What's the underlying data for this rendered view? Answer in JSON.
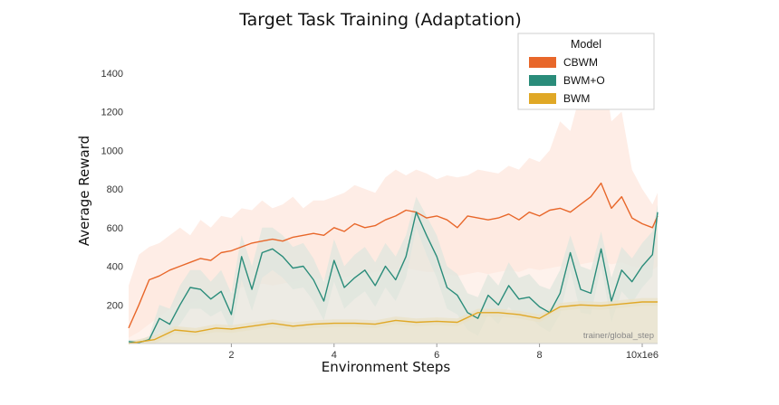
{
  "chart_data": {
    "type": "line",
    "title": "Target Task Training (Adaptation)",
    "xlabel": "Environment Steps",
    "ylabel": "Average Reward",
    "x_tick_labels": [
      "2",
      "4",
      "6",
      "8",
      "10x1e6"
    ],
    "x_ticks": [
      2,
      4,
      6,
      8,
      10
    ],
    "y_ticks": [
      200,
      400,
      600,
      800,
      1000,
      1200,
      1400
    ],
    "xlim": [
      0,
      10.3
    ],
    "ylim": [
      0,
      1600
    ],
    "grid": false,
    "legend": {
      "title": "Model",
      "placement": "top-right"
    },
    "annotation": "trainer/global_step",
    "series": [
      {
        "name": "CBWM",
        "color": "#e8672a",
        "band_color": "#fde7dd",
        "x": [
          0.0,
          0.2,
          0.4,
          0.6,
          0.8,
          1.0,
          1.2,
          1.4,
          1.6,
          1.8,
          2.0,
          2.2,
          2.4,
          2.6,
          2.8,
          3.0,
          3.2,
          3.4,
          3.6,
          3.8,
          4.0,
          4.2,
          4.4,
          4.6,
          4.8,
          5.0,
          5.2,
          5.4,
          5.6,
          5.8,
          6.0,
          6.2,
          6.4,
          6.6,
          6.8,
          7.0,
          7.2,
          7.4,
          7.6,
          7.8,
          8.0,
          8.2,
          8.4,
          8.6,
          8.8,
          9.0,
          9.2,
          9.4,
          9.6,
          9.8,
          10.0,
          10.2,
          10.3
        ],
        "values": [
          80,
          200,
          330,
          350,
          380,
          400,
          420,
          440,
          430,
          470,
          480,
          500,
          520,
          530,
          540,
          530,
          550,
          560,
          570,
          560,
          600,
          580,
          620,
          600,
          610,
          640,
          660,
          690,
          680,
          650,
          660,
          640,
          600,
          660,
          650,
          640,
          650,
          670,
          640,
          680,
          660,
          690,
          700,
          680,
          720,
          760,
          830,
          700,
          760,
          650,
          620,
          600,
          660
        ],
        "upper": [
          300,
          460,
          500,
          520,
          560,
          600,
          560,
          640,
          600,
          660,
          650,
          700,
          690,
          740,
          700,
          720,
          760,
          700,
          740,
          740,
          760,
          780,
          820,
          800,
          780,
          860,
          900,
          870,
          900,
          880,
          850,
          870,
          860,
          870,
          900,
          890,
          880,
          920,
          900,
          960,
          940,
          1000,
          1150,
          1100,
          1300,
          1250,
          1500,
          1150,
          1200,
          900,
          800,
          720,
          780
        ],
        "lower": [
          30,
          60,
          100,
          140,
          180,
          200,
          210,
          230,
          250,
          260,
          270,
          290,
          300,
          310,
          300,
          310,
          320,
          330,
          340,
          330,
          350,
          340,
          360,
          360,
          370,
          380,
          380,
          390,
          380,
          370,
          370,
          360,
          350,
          360,
          370,
          360,
          370,
          380,
          370,
          390,
          380,
          390,
          400,
          390,
          410,
          420,
          430,
          410,
          420,
          400,
          390,
          380,
          400
        ]
      },
      {
        "name": "BWM+O",
        "color": "#2a8c7a",
        "band_color": "#dfe6de",
        "x": [
          0.0,
          0.2,
          0.4,
          0.6,
          0.8,
          1.0,
          1.2,
          1.4,
          1.6,
          1.8,
          2.0,
          2.2,
          2.4,
          2.6,
          2.8,
          3.0,
          3.2,
          3.4,
          3.6,
          3.8,
          4.0,
          4.2,
          4.4,
          4.6,
          4.8,
          5.0,
          5.2,
          5.4,
          5.6,
          5.8,
          6.0,
          6.2,
          6.4,
          6.6,
          6.8,
          7.0,
          7.2,
          7.4,
          7.6,
          7.8,
          8.0,
          8.2,
          8.4,
          8.6,
          8.8,
          9.0,
          9.2,
          9.4,
          9.6,
          9.8,
          10.0,
          10.2,
          10.3
        ],
        "values": [
          10,
          5,
          20,
          130,
          100,
          200,
          290,
          280,
          230,
          270,
          150,
          450,
          280,
          470,
          490,
          450,
          390,
          400,
          330,
          220,
          430,
          290,
          340,
          380,
          300,
          400,
          330,
          450,
          680,
          560,
          450,
          290,
          250,
          160,
          130,
          250,
          200,
          300,
          230,
          240,
          190,
          160,
          260,
          470,
          280,
          260,
          490,
          220,
          380,
          320,
          400,
          460,
          680
        ],
        "upper": [
          20,
          15,
          40,
          200,
          180,
          300,
          380,
          380,
          320,
          380,
          260,
          560,
          400,
          600,
          600,
          560,
          500,
          520,
          440,
          320,
          540,
          400,
          460,
          500,
          420,
          520,
          450,
          560,
          760,
          660,
          560,
          400,
          360,
          260,
          240,
          360,
          300,
          420,
          340,
          360,
          300,
          280,
          380,
          560,
          400,
          380,
          580,
          340,
          500,
          440,
          520,
          580,
          720
        ],
        "lower": [
          5,
          0,
          5,
          60,
          40,
          100,
          180,
          180,
          140,
          170,
          60,
          330,
          170,
          340,
          380,
          340,
          280,
          290,
          220,
          120,
          320,
          180,
          230,
          270,
          190,
          290,
          220,
          340,
          600,
          460,
          340,
          180,
          150,
          70,
          40,
          150,
          100,
          190,
          130,
          140,
          90,
          60,
          150,
          380,
          160,
          150,
          400,
          110,
          270,
          210,
          290,
          350,
          640
        ]
      },
      {
        "name": "BWM",
        "color": "#e0a826",
        "band_color": "#e9e1c7",
        "x": [
          0.0,
          0.5,
          0.9,
          1.3,
          1.7,
          2.0,
          2.4,
          2.8,
          3.2,
          3.6,
          4.0,
          4.4,
          4.8,
          5.2,
          5.6,
          6.0,
          6.4,
          6.8,
          7.2,
          7.6,
          8.0,
          8.4,
          8.8,
          9.2,
          9.6,
          10.0,
          10.3
        ],
        "values": [
          0,
          20,
          70,
          60,
          80,
          75,
          90,
          105,
          90,
          100,
          105,
          105,
          100,
          120,
          110,
          115,
          110,
          160,
          160,
          150,
          130,
          190,
          200,
          195,
          205,
          215,
          215
        ],
        "upper": [
          10,
          40,
          90,
          80,
          100,
          95,
          110,
          125,
          110,
          120,
          125,
          125,
          120,
          140,
          130,
          135,
          130,
          180,
          180,
          170,
          150,
          210,
          220,
          215,
          225,
          235,
          235
        ],
        "lower": [
          0,
          0,
          50,
          40,
          60,
          55,
          70,
          85,
          70,
          80,
          85,
          85,
          80,
          100,
          90,
          95,
          90,
          140,
          140,
          130,
          110,
          170,
          180,
          175,
          185,
          195,
          195
        ]
      }
    ]
  }
}
